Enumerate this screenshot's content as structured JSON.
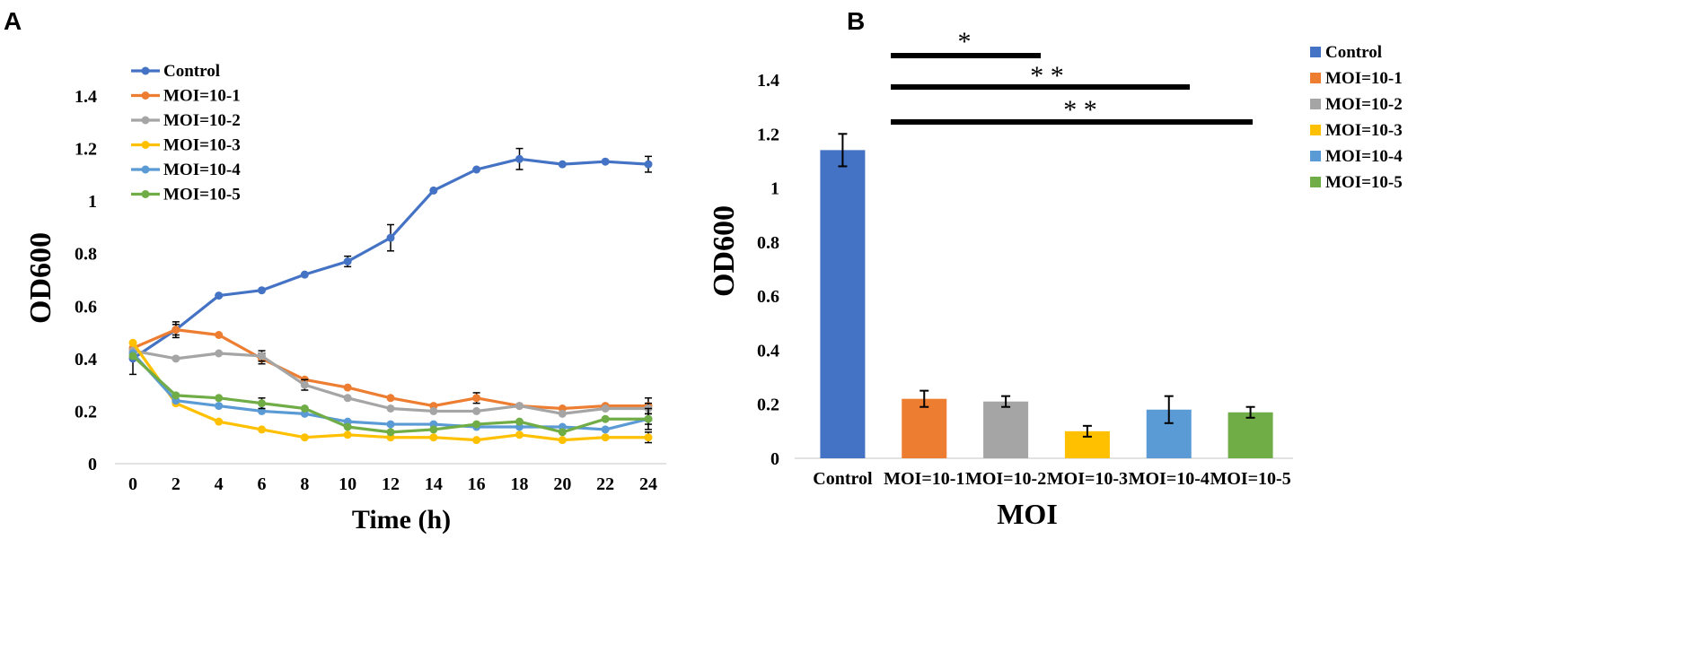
{
  "panels": {
    "a": {
      "letter": "A"
    },
    "b": {
      "letter": "B"
    }
  },
  "colors": {
    "control": "#4472C4",
    "moi1": "#ED7D31",
    "moi2": "#A5A5A5",
    "moi3": "#FFC000",
    "moi4": "#5B9BD5",
    "moi5": "#70AD47",
    "axis": "#D9D9D9",
    "text": "#000000"
  },
  "chart_data": [
    {
      "type": "line",
      "panel": "A",
      "title": "",
      "xlabel": "Time (h)",
      "ylabel": "OD600",
      "x": [
        0,
        2,
        4,
        6,
        8,
        10,
        12,
        14,
        16,
        18,
        20,
        22,
        24
      ],
      "xtick_labels": [
        "0",
        "2",
        "4",
        "6",
        "8",
        "10",
        "12",
        "14",
        "16",
        "18",
        "20",
        "22",
        "24"
      ],
      "ylim": [
        0,
        1.4
      ],
      "ytick_labels": [
        "0",
        "0.2",
        "0.4",
        "0.6",
        "0.8",
        "1",
        "1.2",
        "1.4"
      ],
      "grid": false,
      "legend_position": "top-left",
      "series": [
        {
          "name": "Control",
          "color": "#4472C4",
          "values": [
            0.4,
            0.51,
            0.64,
            0.66,
            0.72,
            0.77,
            0.86,
            1.04,
            1.12,
            1.16,
            1.14,
            1.15,
            1.14
          ],
          "errors": [
            0.06,
            0.03,
            0.01,
            0.01,
            0.01,
            0.02,
            0.05,
            0.01,
            0.01,
            0.04,
            0.01,
            0.01,
            0.03
          ]
        },
        {
          "name": "MOI=10-1",
          "color": "#ED7D31",
          "values": [
            0.44,
            0.51,
            0.49,
            0.4,
            0.32,
            0.29,
            0.25,
            0.22,
            0.25,
            0.22,
            0.21,
            0.22,
            0.22
          ],
          "errors": [
            0.02,
            0.02,
            0.01,
            0.02,
            0.01,
            0.01,
            0.01,
            0.01,
            0.02,
            0.01,
            0.01,
            0.01,
            0.03
          ]
        },
        {
          "name": "MOI=10-2",
          "color": "#A5A5A5",
          "values": [
            0.43,
            0.4,
            0.42,
            0.41,
            0.3,
            0.25,
            0.21,
            0.2,
            0.2,
            0.22,
            0.19,
            0.21,
            0.21
          ],
          "errors": [
            0.01,
            0.01,
            0.01,
            0.02,
            0.02,
            0.01,
            0.01,
            0.01,
            0.01,
            0.01,
            0.01,
            0.01,
            0.02
          ]
        },
        {
          "name": "MOI=10-3",
          "color": "#FFC000",
          "values": [
            0.46,
            0.23,
            0.16,
            0.13,
            0.1,
            0.11,
            0.1,
            0.1,
            0.09,
            0.11,
            0.09,
            0.1,
            0.1
          ],
          "errors": [
            0.01,
            0.01,
            0.01,
            0.01,
            0.01,
            0.01,
            0.01,
            0.01,
            0.01,
            0.01,
            0.01,
            0.01,
            0.02
          ]
        },
        {
          "name": "MOI=10-4",
          "color": "#5B9BD5",
          "values": [
            0.42,
            0.24,
            0.22,
            0.2,
            0.19,
            0.16,
            0.15,
            0.15,
            0.14,
            0.14,
            0.14,
            0.13,
            0.17
          ],
          "errors": [
            0.01,
            0.01,
            0.01,
            0.01,
            0.01,
            0.01,
            0.01,
            0.01,
            0.01,
            0.01,
            0.01,
            0.01,
            0.04
          ]
        },
        {
          "name": "MOI=10-5",
          "color": "#70AD47",
          "values": [
            0.41,
            0.26,
            0.25,
            0.23,
            0.21,
            0.14,
            0.12,
            0.13,
            0.15,
            0.16,
            0.12,
            0.17,
            0.17
          ],
          "errors": [
            0.01,
            0.01,
            0.01,
            0.02,
            0.01,
            0.01,
            0.01,
            0.01,
            0.01,
            0.01,
            0.01,
            0.01,
            0.02
          ]
        }
      ]
    },
    {
      "type": "bar",
      "panel": "B",
      "title": "",
      "xlabel": "MOI",
      "ylabel": "OD600",
      "categories": [
        "Control",
        "MOI=10-1",
        "MOI=10-2",
        "MOI=10-3",
        "MOI=10-4",
        "MOI=10-5"
      ],
      "values": [
        1.14,
        0.22,
        0.21,
        0.1,
        0.18,
        0.17
      ],
      "errors": [
        0.06,
        0.03,
        0.02,
        0.02,
        0.05,
        0.02
      ],
      "colors": [
        "#4472C4",
        "#ED7D31",
        "#A5A5A5",
        "#FFC000",
        "#5B9BD5",
        "#70AD47"
      ],
      "ylim": [
        0,
        1.4
      ],
      "ytick_labels": [
        "0",
        "0.2",
        "0.4",
        "0.6",
        "0.8",
        "1",
        "1.2",
        "1.4"
      ],
      "grid": false,
      "legend_position": "right",
      "legend": [
        "Control",
        "MOI=10-1",
        "MOI=10-2",
        "MOI=10-3",
        "MOI=10-4",
        "MOI=10-5"
      ],
      "significance": [
        {
          "from": "MOI=10-1",
          "to": "MOI=10-2",
          "label": "*"
        },
        {
          "from": "MOI=10-1",
          "to": "MOI=10-4",
          "label": "* *"
        },
        {
          "from": "MOI=10-1",
          "to": "MOI=10-5",
          "label": "* *"
        }
      ]
    }
  ]
}
